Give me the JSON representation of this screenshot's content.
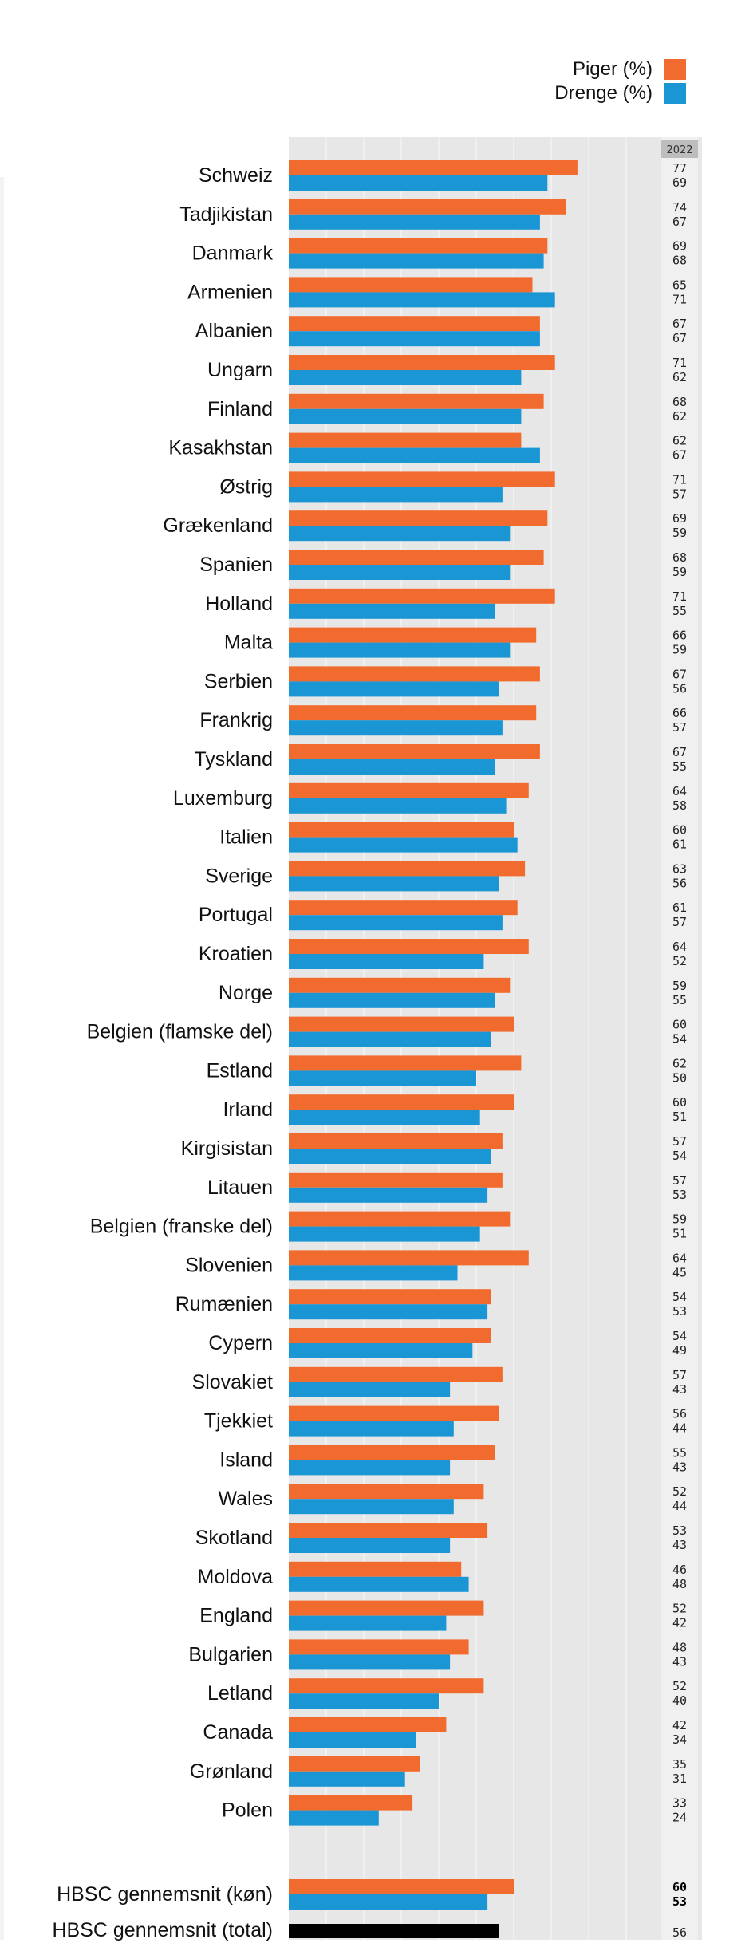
{
  "colors": {
    "girls": "#f26b2e",
    "boys": "#1a96d4",
    "total": "#000000",
    "panel": "#e7e7e7",
    "column": "#f0f0f0",
    "year_bg": "#bdbdbd"
  },
  "legend": {
    "girls": "Piger (%)",
    "boys": "Drenge (%)"
  },
  "year_label": "2022",
  "chart_data": {
    "type": "bar",
    "orientation": "horizontal",
    "legend_position": "top-right",
    "grid": true,
    "xlim": [
      0,
      100
    ],
    "categories": [
      "Schweiz",
      "Tadjikistan",
      "Danmark",
      "Armenien",
      "Albanien",
      "Ungarn",
      "Finland",
      "Kasakhstan",
      "Østrig",
      "Grækenland",
      "Spanien",
      "Holland",
      "Malta",
      "Serbien",
      "Frankrig",
      "Tyskland",
      "Luxemburg",
      "Italien",
      "Sverige",
      "Portugal",
      "Kroatien",
      "Norge",
      "Belgien (flamske del)",
      "Estland",
      "Irland",
      "Kirgisistan",
      "Litauen",
      "Belgien (franske del)",
      "Slovenien",
      "Rumænien",
      "Cypern",
      "Slovakiet",
      "Tjekkiet",
      "Island",
      "Wales",
      "Skotland",
      "Moldova",
      "England",
      "Bulgarien",
      "Letland",
      "Canada",
      "Grønland",
      "Polen"
    ],
    "series": [
      {
        "name": "Piger (%)",
        "values": [
          77,
          74,
          69,
          65,
          67,
          71,
          68,
          62,
          71,
          69,
          68,
          71,
          66,
          67,
          66,
          67,
          64,
          60,
          63,
          61,
          64,
          59,
          60,
          62,
          60,
          57,
          57,
          59,
          64,
          54,
          54,
          57,
          56,
          55,
          52,
          53,
          46,
          52,
          48,
          52,
          42,
          35,
          33
        ]
      },
      {
        "name": "Drenge (%)",
        "values": [
          69,
          67,
          68,
          71,
          67,
          62,
          62,
          67,
          57,
          59,
          59,
          55,
          59,
          56,
          57,
          55,
          58,
          61,
          56,
          57,
          52,
          55,
          54,
          50,
          51,
          54,
          53,
          51,
          45,
          53,
          49,
          43,
          44,
          43,
          44,
          43,
          48,
          42,
          43,
          40,
          34,
          31,
          24
        ]
      }
    ],
    "averages": {
      "gender": {
        "label": "HBSC gennemsnit (køn)",
        "girls": 60,
        "boys": 53
      },
      "total": {
        "label": "HBSC gennemsnit (total)",
        "value": 56
      }
    }
  }
}
